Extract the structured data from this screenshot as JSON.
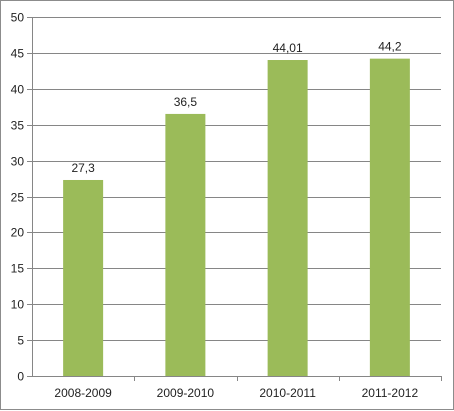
{
  "chart_data": {
    "type": "bar",
    "title": "",
    "xlabel": "",
    "ylabel": "",
    "categories": [
      "2008-2009",
      "2009-2010",
      "2010-2011",
      "2011-2012"
    ],
    "values": [
      27.3,
      36.5,
      44.01,
      44.2
    ],
    "data_labels": [
      "27,3",
      "36,5",
      "44,01",
      "44,2"
    ],
    "ylim": [
      0,
      50
    ],
    "yticks": [
      0,
      5,
      10,
      15,
      20,
      25,
      30,
      35,
      40,
      45,
      50
    ],
    "grid": true,
    "legend": "none",
    "colors": {
      "bar": "#9bbb59",
      "grid": "#868686",
      "axis": "#868686"
    }
  }
}
